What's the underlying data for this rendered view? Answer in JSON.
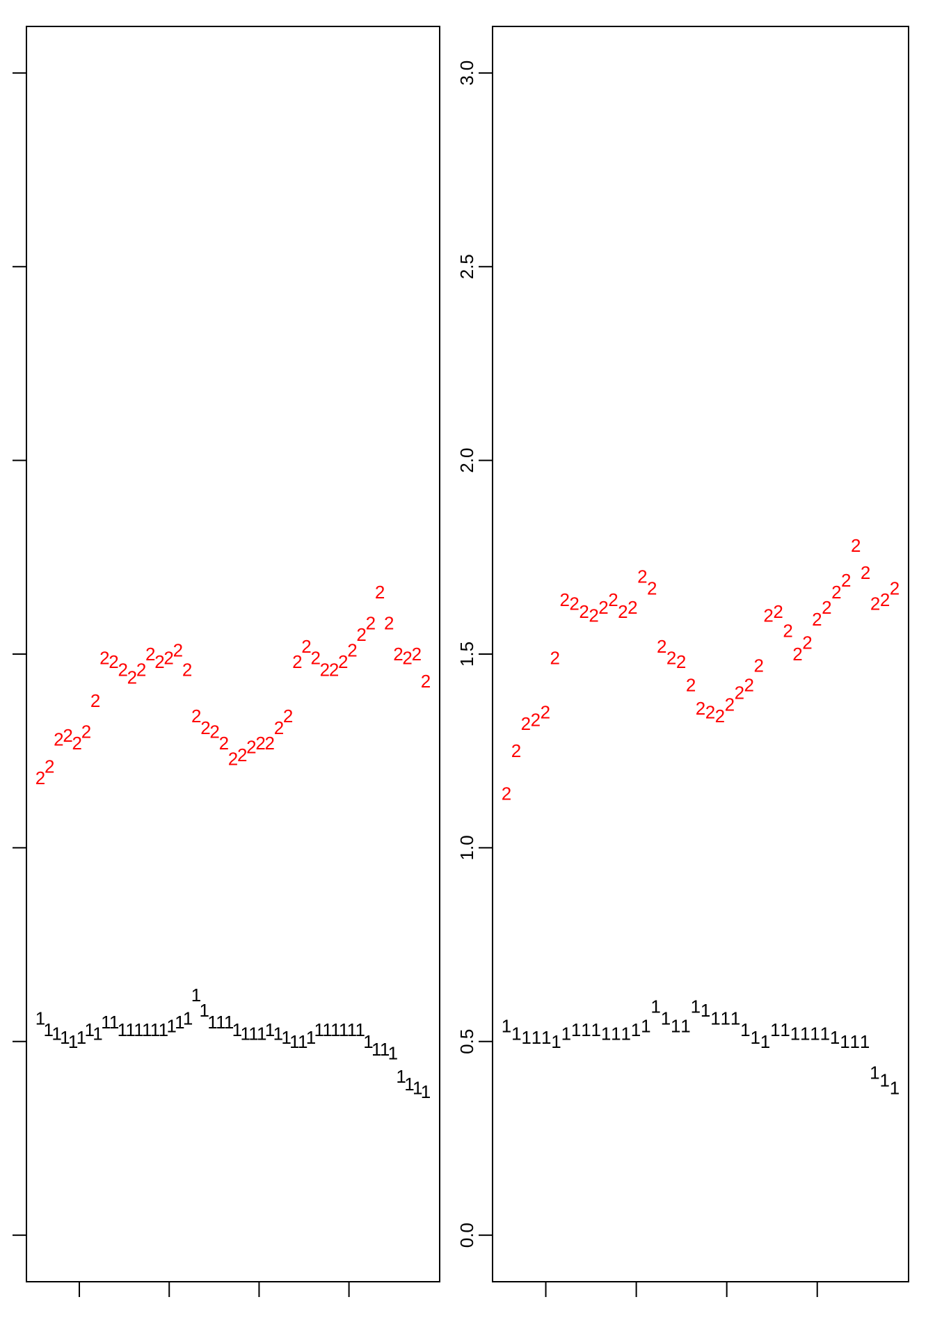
{
  "chart_data": [
    {
      "type": "scatter",
      "title": "",
      "xlabel": "",
      "ylabel": "",
      "ylim": [
        -0.12,
        3.12
      ],
      "y_ticks": [
        "0.0",
        "0.5",
        "1.0",
        "1.5",
        "2.0",
        "2.5",
        "3.0"
      ],
      "y_tick_labels_shown": false,
      "x_ticks_count": 4,
      "grid": false,
      "series": [
        {
          "marker": "1",
          "color": "#000000",
          "values": [
            0.56,
            0.53,
            0.52,
            0.51,
            0.5,
            0.51,
            0.53,
            0.52,
            0.55,
            0.55,
            0.53,
            0.53,
            0.53,
            0.53,
            0.53,
            0.53,
            0.54,
            0.55,
            0.56,
            0.62,
            0.58,
            0.55,
            0.55,
            0.55,
            0.53,
            0.52,
            0.52,
            0.52,
            0.53,
            0.52,
            0.51,
            0.5,
            0.5,
            0.51,
            0.53,
            0.53,
            0.53,
            0.53,
            0.53,
            0.53,
            0.5,
            0.48,
            0.48,
            0.47,
            0.41,
            0.39,
            0.38,
            0.37
          ]
        },
        {
          "marker": "2",
          "color": "#ff0000",
          "values": [
            1.18,
            1.21,
            1.28,
            1.29,
            1.27,
            1.3,
            1.38,
            1.49,
            1.48,
            1.46,
            1.44,
            1.46,
            1.5,
            1.48,
            1.49,
            1.51,
            1.46,
            1.34,
            1.31,
            1.3,
            1.27,
            1.23,
            1.24,
            1.26,
            1.27,
            1.27,
            1.31,
            1.34,
            1.48,
            1.52,
            1.49,
            1.46,
            1.46,
            1.48,
            1.51,
            1.55,
            1.58,
            1.66,
            1.58,
            1.5,
            1.49,
            1.5,
            1.43
          ]
        }
      ]
    },
    {
      "type": "scatter",
      "title": "",
      "xlabel": "",
      "ylabel": "",
      "ylim": [
        -0.12,
        3.12
      ],
      "y_ticks": [
        "0.0",
        "0.5",
        "1.0",
        "1.5",
        "2.0",
        "2.5",
        "3.0"
      ],
      "y_tick_labels_shown": true,
      "x_ticks_count": 4,
      "grid": false,
      "series": [
        {
          "marker": "1",
          "color": "#000000",
          "values": [
            0.54,
            0.52,
            0.51,
            0.51,
            0.51,
            0.5,
            0.52,
            0.53,
            0.53,
            0.53,
            0.52,
            0.52,
            0.52,
            0.53,
            0.54,
            0.59,
            0.56,
            0.54,
            0.54,
            0.59,
            0.58,
            0.56,
            0.56,
            0.56,
            0.53,
            0.51,
            0.5,
            0.53,
            0.53,
            0.52,
            0.52,
            0.52,
            0.52,
            0.51,
            0.5,
            0.5,
            0.5,
            0.42,
            0.4,
            0.38
          ]
        },
        {
          "marker": "2",
          "color": "#ff0000",
          "values": [
            1.14,
            1.25,
            1.32,
            1.33,
            1.35,
            1.49,
            1.64,
            1.63,
            1.61,
            1.6,
            1.62,
            1.64,
            1.61,
            1.62,
            1.7,
            1.67,
            1.52,
            1.49,
            1.48,
            1.42,
            1.36,
            1.35,
            1.34,
            1.37,
            1.4,
            1.42,
            1.47,
            1.6,
            1.61,
            1.56,
            1.5,
            1.53,
            1.59,
            1.62,
            1.66,
            1.69,
            1.78,
            1.71,
            1.63,
            1.64,
            1.67
          ]
        }
      ]
    }
  ]
}
